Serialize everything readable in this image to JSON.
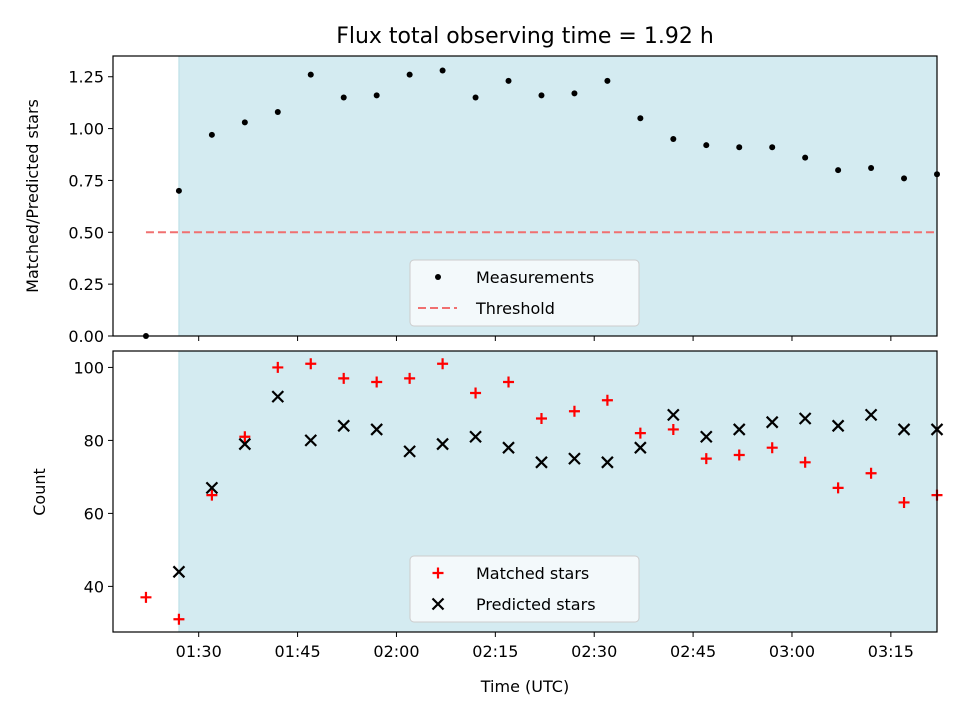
{
  "colors": {
    "band": "#d4ebf1",
    "band_edge": "#b7dde6",
    "measure": "#000000",
    "threshold": "#f07070",
    "matched": "#ff0000",
    "predicted": "#000000"
  },
  "chart_data": [
    {
      "type": "scatter",
      "title": "Flux total observing time = 1.92 h",
      "ylabel": "Matched/Predicted stars",
      "xlabel": "",
      "xlim": [
        "01:17",
        "03:22"
      ],
      "ylim": [
        0,
        1.35
      ],
      "grid": false,
      "legend_placement": "lower-center",
      "shaded_band": {
        "x_start": "01:27",
        "x_end": "03:22"
      },
      "xticks": [
        "01:30",
        "01:45",
        "02:00",
        "02:15",
        "02:30",
        "02:45",
        "03:00",
        "03:15"
      ],
      "yticks": [
        {
          "v": 0,
          "label": "0.00"
        },
        {
          "v": 0.25,
          "label": "0.25"
        },
        {
          "v": 0.5,
          "label": "0.50"
        },
        {
          "v": 0.75,
          "label": "0.75"
        },
        {
          "v": 1.0,
          "label": "1.00"
        },
        {
          "v": 1.25,
          "label": "1.25"
        }
      ],
      "series": [
        {
          "name": "Measurements",
          "marker": "dot",
          "points": [
            [
              "01:22",
              0.0
            ],
            [
              "01:27",
              0.7
            ],
            [
              "01:32",
              0.97
            ],
            [
              "01:37",
              1.03
            ],
            [
              "01:42",
              1.08
            ],
            [
              "01:47",
              1.26
            ],
            [
              "01:52",
              1.15
            ],
            [
              "01:57",
              1.16
            ],
            [
              "02:02",
              1.26
            ],
            [
              "02:07",
              1.28
            ],
            [
              "02:12",
              1.15
            ],
            [
              "02:17",
              1.23
            ],
            [
              "02:22",
              1.16
            ],
            [
              "02:27",
              1.17
            ],
            [
              "02:32",
              1.23
            ],
            [
              "02:37",
              1.05
            ],
            [
              "02:42",
              0.95
            ],
            [
              "02:47",
              0.92
            ],
            [
              "02:52",
              0.91
            ],
            [
              "02:57",
              0.91
            ],
            [
              "03:02",
              0.86
            ],
            [
              "03:07",
              0.8
            ],
            [
              "03:12",
              0.81
            ],
            [
              "03:17",
              0.76
            ],
            [
              "03:22",
              0.78
            ]
          ]
        },
        {
          "name": "Threshold",
          "marker": "dashed-line",
          "points": [
            [
              "01:22",
              0.5
            ],
            [
              "03:22",
              0.5
            ]
          ]
        }
      ]
    },
    {
      "type": "scatter",
      "title": "",
      "ylabel": "Count",
      "xlabel": "Time (UTC)",
      "xlim": [
        "01:17",
        "03:22"
      ],
      "ylim": [
        27.5,
        104.5
      ],
      "grid": false,
      "legend_placement": "lower-center",
      "shaded_band": {
        "x_start": "01:27",
        "x_end": "03:22"
      },
      "xticks": [
        "01:30",
        "01:45",
        "02:00",
        "02:15",
        "02:30",
        "02:45",
        "03:00",
        "03:15"
      ],
      "yticks": [
        {
          "v": 40,
          "label": "40"
        },
        {
          "v": 60,
          "label": "60"
        },
        {
          "v": 80,
          "label": "80"
        },
        {
          "v": 100,
          "label": "100"
        }
      ],
      "series": [
        {
          "name": "Matched stars",
          "marker": "plus",
          "points": [
            [
              "01:22",
              37
            ],
            [
              "01:27",
              31
            ],
            [
              "01:32",
              65
            ],
            [
              "01:37",
              81
            ],
            [
              "01:42",
              100
            ],
            [
              "01:47",
              101
            ],
            [
              "01:52",
              97
            ],
            [
              "01:57",
              96
            ],
            [
              "02:02",
              97
            ],
            [
              "02:07",
              101
            ],
            [
              "02:12",
              93
            ],
            [
              "02:17",
              96
            ],
            [
              "02:22",
              86
            ],
            [
              "02:27",
              88
            ],
            [
              "02:32",
              91
            ],
            [
              "02:37",
              82
            ],
            [
              "02:42",
              83
            ],
            [
              "02:47",
              75
            ],
            [
              "02:52",
              76
            ],
            [
              "02:57",
              78
            ],
            [
              "03:02",
              74
            ],
            [
              "03:07",
              67
            ],
            [
              "03:12",
              71
            ],
            [
              "03:17",
              63
            ],
            [
              "03:22",
              65
            ]
          ]
        },
        {
          "name": "Predicted stars",
          "marker": "x",
          "points": [
            [
              "01:27",
              44
            ],
            [
              "01:32",
              67
            ],
            [
              "01:37",
              79
            ],
            [
              "01:42",
              92
            ],
            [
              "01:47",
              80
            ],
            [
              "01:52",
              84
            ],
            [
              "01:57",
              83
            ],
            [
              "02:02",
              77
            ],
            [
              "02:07",
              79
            ],
            [
              "02:12",
              81
            ],
            [
              "02:17",
              78
            ],
            [
              "02:22",
              74
            ],
            [
              "02:27",
              75
            ],
            [
              "02:32",
              74
            ],
            [
              "02:37",
              78
            ],
            [
              "02:42",
              87
            ],
            [
              "02:47",
              81
            ],
            [
              "02:52",
              83
            ],
            [
              "02:57",
              85
            ],
            [
              "03:02",
              86
            ],
            [
              "03:07",
              84
            ],
            [
              "03:12",
              87
            ],
            [
              "03:17",
              83
            ],
            [
              "03:22",
              83
            ]
          ]
        }
      ]
    }
  ]
}
